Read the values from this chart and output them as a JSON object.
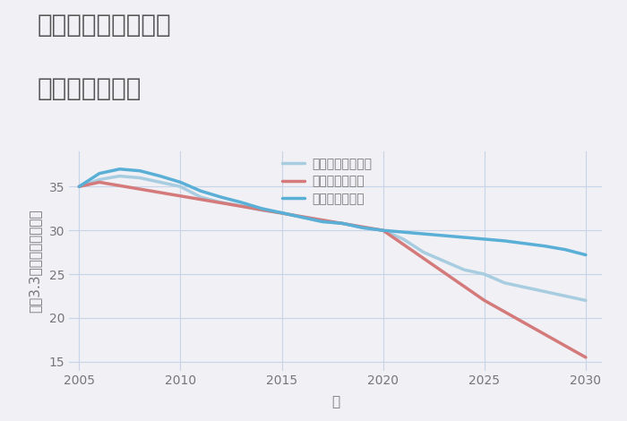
{
  "title_line1": "兵庫県姫路市広峰の",
  "title_line2": "土地の価格推移",
  "xlabel": "年",
  "ylabel": "坪（3.3㎡）単価（万円）",
  "background_color": "#f0f0f5",
  "plot_background": "#f0f0f5",
  "good_label": "グッドシナリオ",
  "bad_label": "バッドシナリオ",
  "normal_label": "ノーマルシナリオ",
  "good_color": "#5aafd6",
  "bad_color": "#d47a7a",
  "normal_color": "#a8cde0",
  "good_x": [
    2005,
    2006,
    2007,
    2008,
    2009,
    2010,
    2011,
    2012,
    2013,
    2014,
    2015,
    2016,
    2017,
    2018,
    2019,
    2020,
    2021,
    2022,
    2023,
    2024,
    2025,
    2026,
    2027,
    2028,
    2029,
    2030
  ],
  "good_y": [
    35.0,
    36.5,
    37.0,
    36.8,
    36.2,
    35.5,
    34.5,
    33.8,
    33.2,
    32.5,
    32.0,
    31.5,
    31.0,
    30.8,
    30.3,
    30.0,
    29.8,
    29.6,
    29.4,
    29.2,
    29.0,
    28.8,
    28.5,
    28.2,
    27.8,
    27.2
  ],
  "bad_x": [
    2005,
    2006,
    2020,
    2025,
    2030
  ],
  "bad_y": [
    35.0,
    35.5,
    30.0,
    22.0,
    15.5
  ],
  "normal_x": [
    2005,
    2006,
    2007,
    2008,
    2009,
    2010,
    2011,
    2012,
    2013,
    2014,
    2015,
    2016,
    2017,
    2018,
    2019,
    2020,
    2021,
    2022,
    2023,
    2024,
    2025,
    2026,
    2027,
    2028,
    2029,
    2030
  ],
  "normal_y": [
    35.0,
    35.8,
    36.2,
    36.0,
    35.5,
    35.0,
    33.8,
    33.2,
    32.8,
    32.3,
    32.0,
    31.5,
    31.0,
    30.8,
    30.3,
    30.0,
    29.0,
    27.5,
    26.5,
    25.5,
    25.0,
    24.0,
    23.5,
    23.0,
    22.5,
    22.0
  ],
  "xlim": [
    2004.5,
    2030.8
  ],
  "ylim": [
    14,
    39
  ],
  "xticks": [
    2005,
    2010,
    2015,
    2020,
    2025,
    2030
  ],
  "yticks": [
    15,
    20,
    25,
    30,
    35
  ],
  "grid_color": "#c8d4e8",
  "line_width": 2.5,
  "title_fontsize": 20,
  "label_fontsize": 11,
  "tick_fontsize": 10,
  "legend_fontsize": 10
}
